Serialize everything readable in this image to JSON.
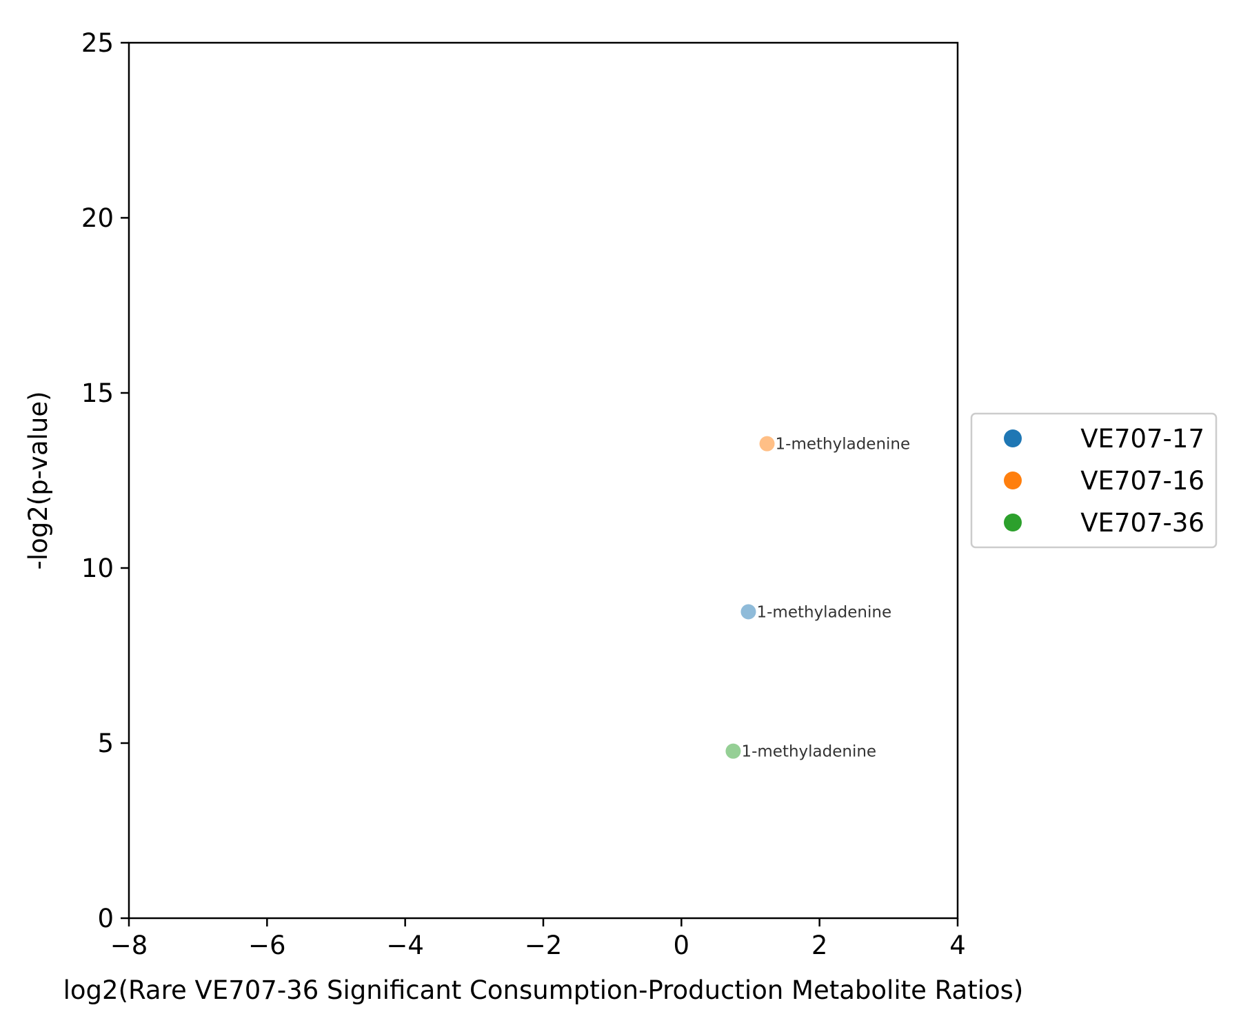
{
  "chart_data": {
    "type": "scatter",
    "xlabel": "log2(Rare VE707-36 Significant Consumption-Production Metabolite Ratios)",
    "ylabel": "-log2(p-value)",
    "xlim": [
      -8,
      4
    ],
    "ylim": [
      0,
      25
    ],
    "xticks": [
      -8,
      -6,
      -4,
      -2,
      0,
      2,
      4
    ],
    "yticks": [
      0,
      5,
      10,
      15,
      20,
      25
    ],
    "xtick_labels": [
      "−8",
      "−6",
      "−4",
      "−2",
      "0",
      "2",
      "4"
    ],
    "ytick_labels": [
      "0",
      "5",
      "10",
      "15",
      "20",
      "25"
    ],
    "grid": false,
    "legend_position": "center-right-outside",
    "series": [
      {
        "name": "VE707-17",
        "color": "#1f77b4",
        "points": [
          {
            "x": 0.97,
            "y": 8.75,
            "label": "1-methyladenine"
          }
        ]
      },
      {
        "name": "VE707-16",
        "color": "#ff7f0e",
        "points": [
          {
            "x": 1.24,
            "y": 13.55,
            "label": "1-methyladenine"
          }
        ]
      },
      {
        "name": "VE707-36",
        "color": "#2ca02c",
        "points": [
          {
            "x": 0.75,
            "y": 4.77,
            "label": "1-methyladenine"
          }
        ]
      }
    ]
  }
}
